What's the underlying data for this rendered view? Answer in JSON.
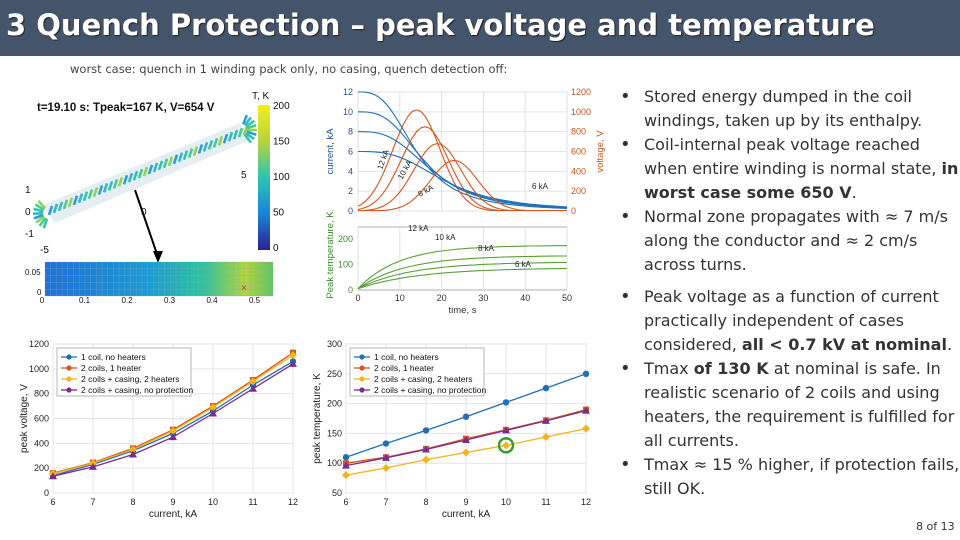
{
  "title": "3  Quench Protection – peak voltage and temperature",
  "caption": "worst case: quench in 1 winding pack only, no casing, quench detection off:",
  "bullets": [
    {
      "parts": [
        {
          "t": "Stored energy dumped in the coil windings, taken up by its enthalpy.",
          "b": false
        }
      ]
    },
    {
      "parts": [
        {
          "t": "Coil-internal peak voltage reached when entire winding is normal state, ",
          "b": false
        },
        {
          "t": "in worst case some 650 V",
          "b": true
        },
        {
          "t": ".",
          "b": false
        }
      ]
    },
    {
      "parts": [
        {
          "t": "Normal zone propagates with ≈ 7 m/s along the conductor and ≈ 2 cm/s across turns.",
          "b": false
        }
      ]
    },
    {
      "parts": [
        {
          "t": "Peak voltage as a function of current practically independent of cases considered, ",
          "b": false
        },
        {
          "t": "all < 0.7 kV at nominal",
          "b": true
        },
        {
          "t": ".",
          "b": false
        }
      ]
    },
    {
      "parts": [
        {
          "t": "Tmax ",
          "b": false
        },
        {
          "t": "of 130 K",
          "b": true
        },
        {
          "t": " at nominal is safe. In realistic scenario of 2 coils and using heaters, the requirement is fulfilled for all currents.",
          "b": false
        }
      ]
    },
    {
      "parts": [
        {
          "t": "Tmax ≈ 15 % higher, if protection fails, still OK.",
          "b": false
        }
      ]
    }
  ],
  "page_number": "8 of 13",
  "colors": {
    "title_bg": "#44546a",
    "s1": "#1f6fb5",
    "s2": "#d9541b",
    "s3": "#f2b31c",
    "s4": "#7b2d8e",
    "marker": "#3a9a2a"
  },
  "coil_plot": {
    "title": "t=19.10 s: Tpeak=167 K, V=654 V",
    "colorbar_label": "T, K",
    "colorbar_ticks": [
      "200",
      "150",
      "100",
      "50",
      "0"
    ],
    "y_ticks": [
      "1",
      "0",
      "-1"
    ],
    "x_ticks": [
      "-5",
      "0",
      "5"
    ],
    "strip_y_ticks": [
      "0.05",
      "0"
    ],
    "strip_x_ticks": [
      "0",
      "0.1",
      "0.2",
      "0.3",
      "0.4",
      "0.5"
    ]
  },
  "time_plot": {
    "xlabel": "time, s",
    "ylabel_current": "current, kA",
    "ylabel_voltage": "voltage, V",
    "ylabel_temp": "Peak temperature, K",
    "x_ticks": [
      0,
      10,
      20,
      30,
      40,
      50
    ],
    "current_ticks": [
      0,
      2,
      4,
      6,
      8,
      10,
      12
    ],
    "voltage_ticks": [
      0,
      200,
      400,
      600,
      800,
      1000,
      1200
    ],
    "temp_ticks": [
      0,
      100,
      200
    ],
    "current_labels": [
      "12 kA",
      "10 kA",
      "8 kA",
      "6 kA"
    ],
    "temp_labels": [
      "12 kA",
      "10 kA",
      "8 kA",
      "6 kA"
    ]
  },
  "chart_data": [
    {
      "type": "line",
      "title": "",
      "xlabel": "current, kA",
      "ylabel": "peak voltage, V",
      "x": [
        6,
        7,
        8,
        9,
        10,
        11,
        12
      ],
      "xlim": [
        6,
        12
      ],
      "ylim": [
        0,
        1200
      ],
      "y_ticks": [
        0,
        200,
        400,
        600,
        800,
        1000,
        1200
      ],
      "legend": "top-left",
      "grid": true,
      "series": [
        {
          "name": "1 coil, no heaters",
          "values": [
            140,
            230,
            340,
            480,
            660,
            870,
            1060
          ]
        },
        {
          "name": "2 coils, 1 heater",
          "values": [
            160,
            245,
            360,
            510,
            700,
            910,
            1130
          ]
        },
        {
          "name": "2 coils + casing, 2 heaters",
          "values": [
            155,
            240,
            350,
            500,
            690,
            900,
            1110
          ]
        },
        {
          "name": "2 coils + casing, no protection",
          "values": [
            135,
            210,
            310,
            450,
            640,
            840,
            1040
          ]
        }
      ]
    },
    {
      "type": "line",
      "title": "",
      "xlabel": "current, kA",
      "ylabel": "peak temperature, K",
      "x": [
        6,
        7,
        8,
        9,
        10,
        11,
        12
      ],
      "xlim": [
        6,
        12
      ],
      "ylim": [
        50,
        300
      ],
      "y_ticks": [
        50,
        100,
        150,
        200,
        250,
        300
      ],
      "legend": "top-left",
      "grid": true,
      "series": [
        {
          "name": "1 coil, no heaters",
          "values": [
            110,
            133,
            155,
            178,
            202,
            226,
            250
          ]
        },
        {
          "name": "2 coils, 1 heater",
          "values": [
            100,
            110,
            124,
            141,
            156,
            172,
            190
          ]
        },
        {
          "name": "2 coils + casing, 2 heaters",
          "values": [
            80,
            92,
            106,
            118,
            130,
            144,
            158
          ]
        },
        {
          "name": "2 coils + casing, no protection",
          "values": [
            96,
            109,
            123,
            139,
            155,
            171,
            188
          ]
        }
      ]
    }
  ]
}
